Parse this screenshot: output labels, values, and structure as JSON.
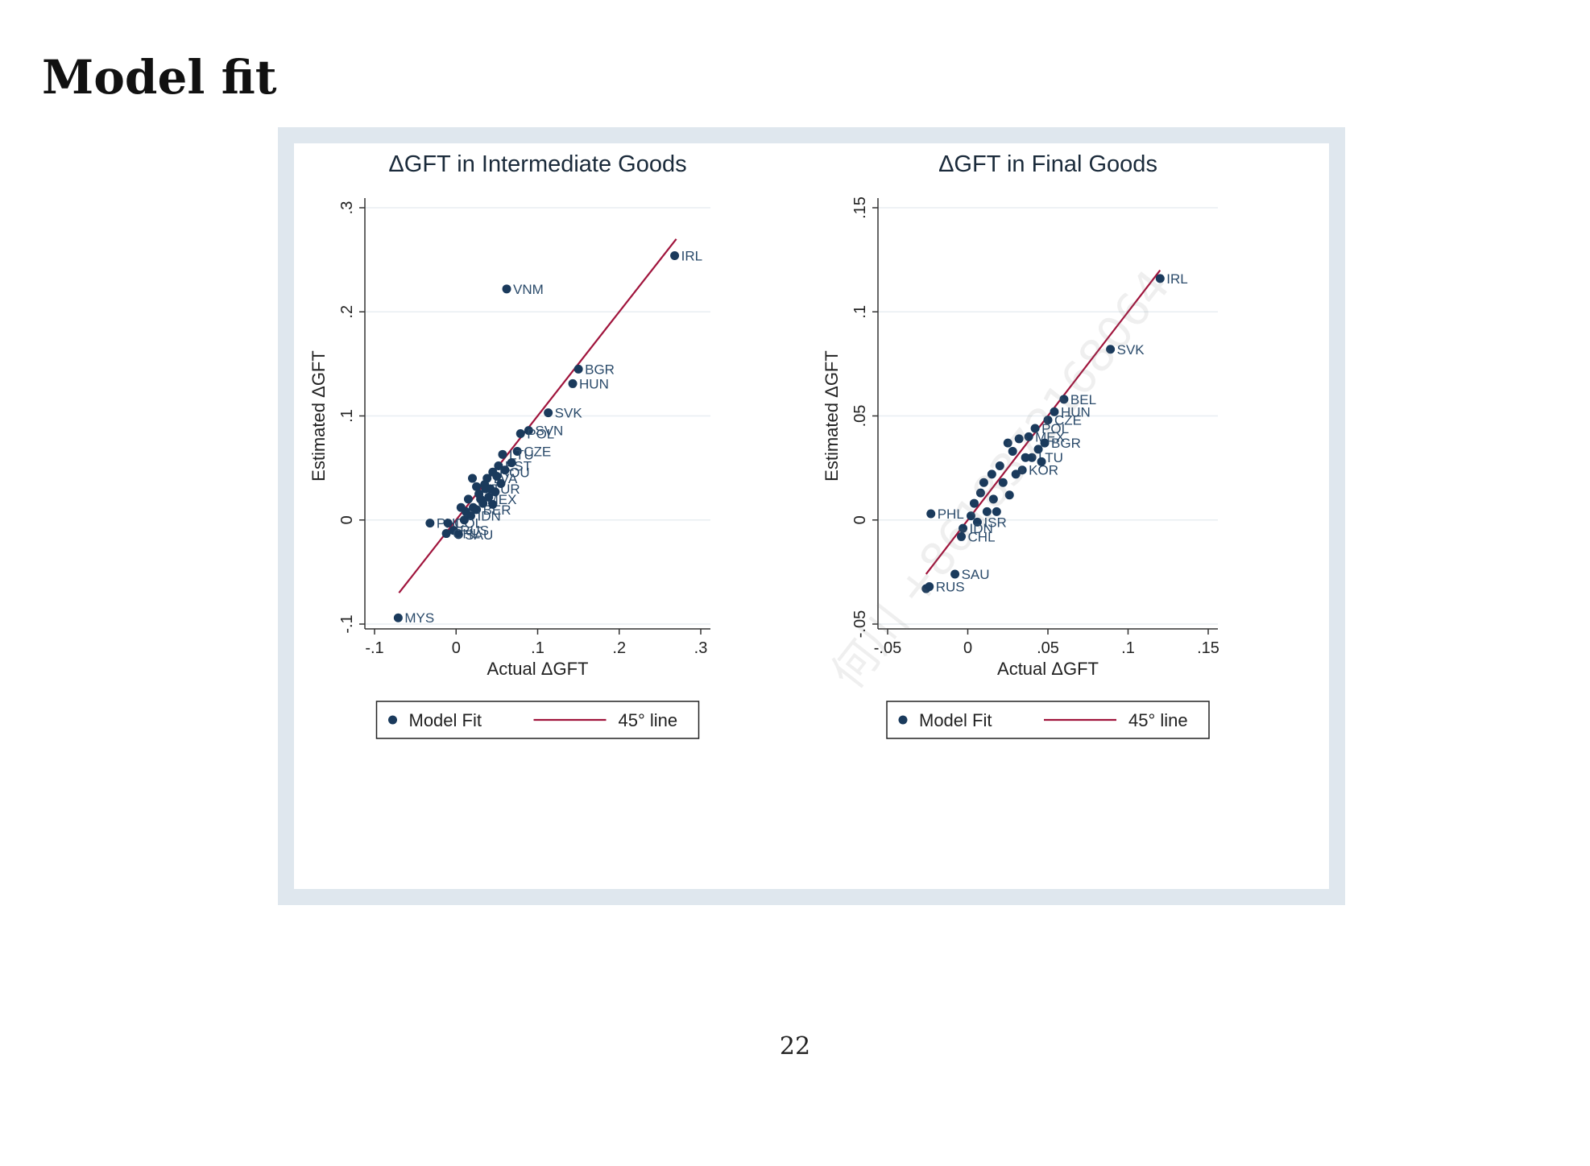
{
  "page": {
    "title": "Model fit",
    "page_number": "22",
    "watermark": "何川 +8618372168064"
  },
  "colors": {
    "frame": "#dfe7ee",
    "marker": "#1a3a5c",
    "fit_line": "#a0143c",
    "grid": "#e8eef2",
    "label": "#2a4a6a"
  },
  "chart_data": [
    {
      "type": "scatter",
      "title": "ΔGFT in Intermediate Goods",
      "xlabel": "Actual ΔGFT",
      "ylabel": "Estimated ΔGFT",
      "xlim": [
        -0.1,
        0.3
      ],
      "ylim": [
        -0.1,
        0.3
      ],
      "xticks": [
        -0.1,
        0,
        0.1,
        0.2,
        0.3
      ],
      "xtick_labels": [
        "-.1",
        "0",
        ".1",
        ".2",
        ".3"
      ],
      "yticks": [
        -0.1,
        0,
        0.1,
        0.2,
        0.3
      ],
      "ytick_labels": [
        "-.1",
        "0",
        ".1",
        ".2",
        ".3"
      ],
      "grid": true,
      "fit_line": {
        "name": "45° line",
        "x": [
          -0.07,
          0.27
        ]
      },
      "legend": {
        "placement": "bottom",
        "entries": [
          "Model Fit",
          "45° line"
        ]
      },
      "series": [
        {
          "name": "Model Fit",
          "points": [
            {
              "x": 0.268,
              "y": 0.254,
              "label": "IRL"
            },
            {
              "x": 0.062,
              "y": 0.222,
              "label": "VNM"
            },
            {
              "x": 0.15,
              "y": 0.145,
              "label": "BGR"
            },
            {
              "x": 0.143,
              "y": 0.131,
              "label": "HUN"
            },
            {
              "x": 0.113,
              "y": 0.103,
              "label": "SVK"
            },
            {
              "x": 0.089,
              "y": 0.086,
              "label": "SVN"
            },
            {
              "x": 0.079,
              "y": 0.083,
              "label": "POL"
            },
            {
              "x": 0.075,
              "y": 0.066,
              "label": "CZE"
            },
            {
              "x": 0.057,
              "y": 0.063,
              "label": "LTU"
            },
            {
              "x": 0.052,
              "y": 0.052,
              "label": "EST"
            },
            {
              "x": 0.045,
              "y": 0.046,
              "label": "ROU"
            },
            {
              "x": 0.038,
              "y": 0.04,
              "label": "LVA"
            },
            {
              "x": 0.036,
              "y": 0.03,
              "label": "TUR"
            },
            {
              "x": 0.03,
              "y": 0.02,
              "label": "MEX"
            },
            {
              "x": 0.025,
              "y": 0.01,
              "label": "BER"
            },
            {
              "x": 0.018,
              "y": 0.004,
              "label": "IDN"
            },
            {
              "x": -0.032,
              "y": -0.003,
              "label": "PHL"
            },
            {
              "x": -0.01,
              "y": -0.003,
              "label": "COL"
            },
            {
              "x": -0.003,
              "y": -0.01,
              "label": "RUS"
            },
            {
              "x": 0.003,
              "y": -0.014,
              "label": "SAU"
            },
            {
              "x": -0.012,
              "y": -0.013,
              "label": "CHL"
            },
            {
              "x": -0.071,
              "y": -0.094,
              "label": "MYS"
            },
            {
              "x": 0.02,
              "y": 0.04,
              "label": ""
            },
            {
              "x": 0.035,
              "y": 0.034,
              "label": ""
            },
            {
              "x": 0.028,
              "y": 0.025,
              "label": ""
            },
            {
              "x": 0.042,
              "y": 0.03,
              "label": ""
            },
            {
              "x": 0.048,
              "y": 0.027,
              "label": ""
            },
            {
              "x": 0.033,
              "y": 0.016,
              "label": ""
            },
            {
              "x": 0.021,
              "y": 0.012,
              "label": ""
            },
            {
              "x": 0.012,
              "y": 0.008,
              "label": ""
            },
            {
              "x": 0.006,
              "y": 0.012,
              "label": ""
            },
            {
              "x": 0.04,
              "y": 0.022,
              "label": ""
            },
            {
              "x": 0.055,
              "y": 0.035,
              "label": ""
            },
            {
              "x": 0.06,
              "y": 0.048,
              "label": ""
            },
            {
              "x": 0.045,
              "y": 0.015,
              "label": ""
            },
            {
              "x": 0.015,
              "y": 0.02,
              "label": ""
            },
            {
              "x": 0.025,
              "y": 0.032,
              "label": ""
            },
            {
              "x": 0.068,
              "y": 0.055,
              "label": ""
            },
            {
              "x": 0.05,
              "y": 0.042,
              "label": ""
            },
            {
              "x": 0.01,
              "y": 0.0,
              "label": ""
            }
          ]
        }
      ]
    },
    {
      "type": "scatter",
      "title": "ΔGFT in Final Goods",
      "xlabel": "Actual ΔGFT",
      "ylabel": "Estimated ΔGFT",
      "xlim": [
        -0.05,
        0.15
      ],
      "ylim": [
        -0.05,
        0.15
      ],
      "xticks": [
        -0.05,
        0,
        0.05,
        0.1,
        0.15
      ],
      "xtick_labels": [
        "-.05",
        "0",
        ".05",
        ".1",
        ".15"
      ],
      "yticks": [
        -0.05,
        0,
        0.05,
        0.1,
        0.15
      ],
      "ytick_labels": [
        "-.05",
        "0",
        ".05",
        ".1",
        ".15"
      ],
      "grid": true,
      "fit_line": {
        "name": "45° line",
        "x": [
          -0.026,
          0.12
        ]
      },
      "legend": {
        "placement": "bottom",
        "entries": [
          "Model Fit",
          "45° line"
        ]
      },
      "series": [
        {
          "name": "Model Fit",
          "points": [
            {
              "x": 0.12,
              "y": 0.116,
              "label": "IRL"
            },
            {
              "x": 0.089,
              "y": 0.082,
              "label": "SVK"
            },
            {
              "x": 0.06,
              "y": 0.058,
              "label": "BEL"
            },
            {
              "x": 0.054,
              "y": 0.052,
              "label": "HUN"
            },
            {
              "x": 0.05,
              "y": 0.048,
              "label": "CZE"
            },
            {
              "x": 0.042,
              "y": 0.044,
              "label": "POL"
            },
            {
              "x": 0.038,
              "y": 0.04,
              "label": "MEX"
            },
            {
              "x": 0.048,
              "y": 0.037,
              "label": "BGR"
            },
            {
              "x": 0.04,
              "y": 0.03,
              "label": "LTU"
            },
            {
              "x": 0.034,
              "y": 0.024,
              "label": "KOR"
            },
            {
              "x": -0.023,
              "y": 0.003,
              "label": "PHL"
            },
            {
              "x": 0.006,
              "y": -0.001,
              "label": "ISR"
            },
            {
              "x": -0.003,
              "y": -0.004,
              "label": "IDN"
            },
            {
              "x": -0.004,
              "y": -0.008,
              "label": "CHL"
            },
            {
              "x": -0.008,
              "y": -0.026,
              "label": "SAU"
            },
            {
              "x": -0.024,
              "y": -0.032,
              "label": "RUS"
            },
            {
              "x": 0.025,
              "y": 0.037,
              "label": ""
            },
            {
              "x": 0.032,
              "y": 0.039,
              "label": ""
            },
            {
              "x": 0.028,
              "y": 0.033,
              "label": ""
            },
            {
              "x": 0.02,
              "y": 0.026,
              "label": ""
            },
            {
              "x": 0.015,
              "y": 0.022,
              "label": ""
            },
            {
              "x": 0.01,
              "y": 0.018,
              "label": ""
            },
            {
              "x": 0.008,
              "y": 0.013,
              "label": ""
            },
            {
              "x": 0.004,
              "y": 0.008,
              "label": ""
            },
            {
              "x": 0.022,
              "y": 0.018,
              "label": ""
            },
            {
              "x": 0.03,
              "y": 0.022,
              "label": ""
            },
            {
              "x": 0.026,
              "y": 0.012,
              "label": ""
            },
            {
              "x": 0.016,
              "y": 0.01,
              "label": ""
            },
            {
              "x": 0.012,
              "y": 0.004,
              "label": ""
            },
            {
              "x": 0.002,
              "y": 0.002,
              "label": ""
            },
            {
              "x": 0.036,
              "y": 0.03,
              "label": ""
            },
            {
              "x": 0.044,
              "y": 0.034,
              "label": ""
            },
            {
              "x": 0.046,
              "y": 0.028,
              "label": ""
            },
            {
              "x": 0.018,
              "y": 0.004,
              "label": ""
            },
            {
              "x": -0.026,
              "y": -0.033,
              "label": ""
            }
          ]
        }
      ]
    }
  ]
}
